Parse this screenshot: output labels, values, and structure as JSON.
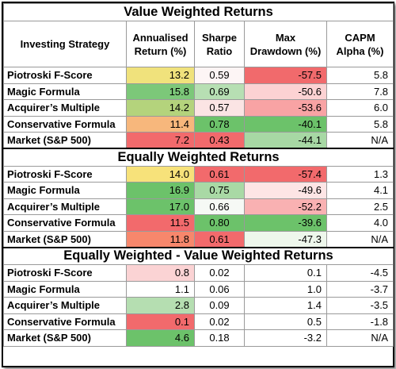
{
  "headers": [
    "Investing Strategy",
    "Annualised Return (%)",
    "Sharpe Ratio",
    "Max Drawdown (%)",
    "CAPM Alpha (%)"
  ],
  "sections": [
    {
      "title": "Value Weighted Returns",
      "rows": [
        {
          "name": "Piotroski F-Score",
          "ret": "13.2",
          "sharpe": "0.59",
          "dd": "-57.5",
          "alpha": "5.8",
          "ret_color": "#f0e27c",
          "sharpe_color": "#fdf5f5",
          "dd_color": "#f16a6c"
        },
        {
          "name": "Magic Formula",
          "ret": "15.8",
          "sharpe": "0.69",
          "dd": "-50.6",
          "alpha": "7.8",
          "ret_color": "#7cc879",
          "sharpe_color": "#b7dfb3",
          "dd_color": "#fcd2d3"
        },
        {
          "name": "Acquirer’s Multiple",
          "ret": "14.2",
          "sharpe": "0.57",
          "dd": "-53.6",
          "alpha": "6.0",
          "ret_color": "#b4d37c",
          "sharpe_color": "#fbe4e4",
          "dd_color": "#f8a3a4"
        },
        {
          "name": "Conservative Formula",
          "ret": "11.4",
          "sharpe": "0.78",
          "dd": "-40.1",
          "alpha": "5.8",
          "ret_color": "#f7b77c",
          "sharpe_color": "#6cc26a",
          "dd_color": "#6cc26a"
        },
        {
          "name": "Market (S&P 500)",
          "ret": "7.2",
          "sharpe": "0.43",
          "dd": "-44.1",
          "alpha": "N/A",
          "ret_color": "#f26a6c",
          "sharpe_color": "#f26a6c",
          "dd_color": "#a7d8a4"
        }
      ]
    },
    {
      "title": "Equally Weighted Returns",
      "rows": [
        {
          "name": "Piotroski F-Score",
          "ret": "14.0",
          "sharpe": "0.61",
          "dd": "-57.4",
          "alpha": "1.3",
          "ret_color": "#f7e27a",
          "sharpe_color": "#f26a6c",
          "dd_color": "#f26a6c"
        },
        {
          "name": "Magic Formula",
          "ret": "16.9",
          "sharpe": "0.75",
          "dd": "-49.6",
          "alpha": "4.1",
          "ret_color": "#6cc26a",
          "sharpe_color": "#a9d9a5",
          "dd_color": "#fde5e5"
        },
        {
          "name": "Acquirer’s Multiple",
          "ret": "17.0",
          "sharpe": "0.66",
          "dd": "-52.2",
          "alpha": "2.5",
          "ret_color": "#6cc26a",
          "sharpe_color": "#f6f9f5",
          "dd_color": "#f9b1b2"
        },
        {
          "name": "Conservative Formula",
          "ret": "11.5",
          "sharpe": "0.80",
          "dd": "-39.6",
          "alpha": "4.0",
          "ret_color": "#f26a6c",
          "sharpe_color": "#6cc26a",
          "dd_color": "#6cc26a"
        },
        {
          "name": "Market (S&P 500)",
          "ret": "11.8",
          "sharpe": "0.61",
          "dd": "-47.3",
          "alpha": "N/A",
          "ret_color": "#f7876c",
          "sharpe_color": "#f26a6c",
          "dd_color": "#eef7ec"
        }
      ]
    },
    {
      "title": "Equally Weighted - Value Weighted Returns",
      "rows": [
        {
          "name": "Piotroski F-Score",
          "ret": "0.8",
          "sharpe": "0.02",
          "dd": "0.1",
          "alpha": "-4.5",
          "ret_color": "#fbd3d4",
          "sharpe_color": "#ffffff",
          "dd_color": "#ffffff"
        },
        {
          "name": "Magic Formula",
          "ret": "1.1",
          "sharpe": "0.06",
          "dd": "1.0",
          "alpha": "-3.7",
          "ret_color": "#ffffff",
          "sharpe_color": "#ffffff",
          "dd_color": "#ffffff"
        },
        {
          "name": "Acquirer’s Multiple",
          "ret": "2.8",
          "sharpe": "0.09",
          "dd": "1.4",
          "alpha": "-3.5",
          "ret_color": "#b5deb1",
          "sharpe_color": "#ffffff",
          "dd_color": "#ffffff"
        },
        {
          "name": "Conservative Formula",
          "ret": "0.1",
          "sharpe": "0.02",
          "dd": "0.5",
          "alpha": "-1.8",
          "ret_color": "#f26a6c",
          "sharpe_color": "#ffffff",
          "dd_color": "#ffffff"
        },
        {
          "name": "Market (S&P 500)",
          "ret": "4.6",
          "sharpe": "0.18",
          "dd": "-3.2",
          "alpha": "N/A",
          "ret_color": "#6cc26a",
          "sharpe_color": "#ffffff",
          "dd_color": "#ffffff"
        }
      ]
    }
  ]
}
